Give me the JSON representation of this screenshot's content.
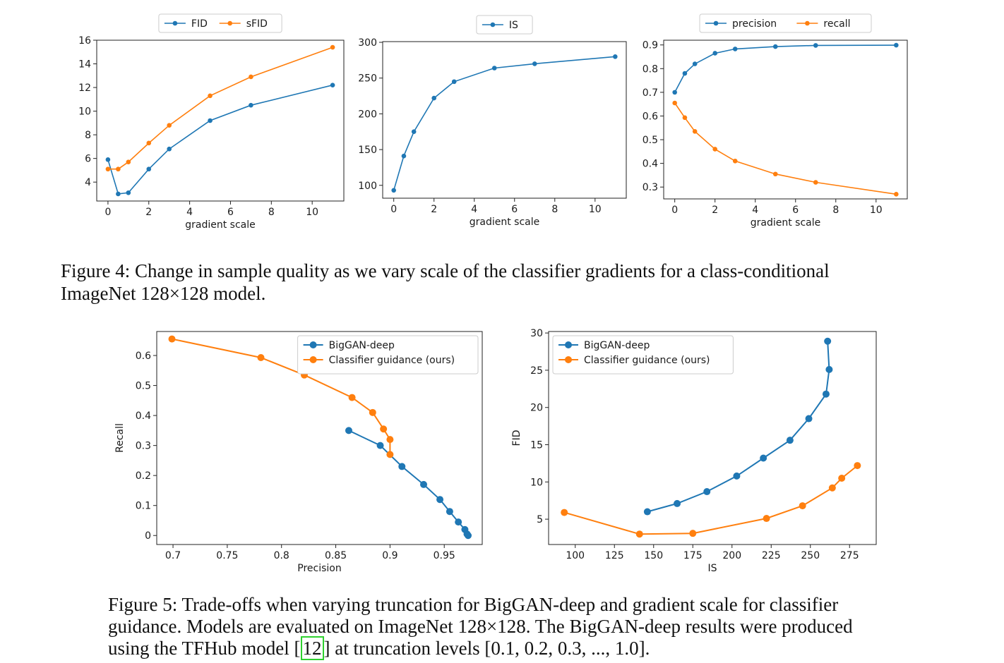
{
  "chart_data": [
    {
      "id": "fig4a",
      "type": "line",
      "xlabel": "gradient scale",
      "ylabel": "",
      "xlim": [
        -0.55,
        11.55
      ],
      "ylim": [
        2.4,
        16.0
      ],
      "xticks": [
        0,
        2,
        4,
        6,
        8,
        10
      ],
      "yticks": [
        4,
        6,
        8,
        10,
        12,
        14,
        16
      ],
      "legend": "top-center",
      "series": [
        {
          "name": "FID",
          "color": "#1f77b4",
          "x": [
            0,
            0.5,
            1,
            2,
            3,
            5,
            7,
            11
          ],
          "y": [
            5.9,
            3.0,
            3.1,
            5.1,
            6.8,
            9.2,
            10.5,
            12.2
          ]
        },
        {
          "name": "sFID",
          "color": "#ff7f0e",
          "x": [
            0,
            0.5,
            1,
            2,
            3,
            5,
            7,
            11
          ],
          "y": [
            5.1,
            5.1,
            5.7,
            7.3,
            8.8,
            11.3,
            12.9,
            15.4
          ]
        }
      ]
    },
    {
      "id": "fig4b",
      "type": "line",
      "xlabel": "gradient scale",
      "ylabel": "",
      "xlim": [
        -0.55,
        11.55
      ],
      "ylim": [
        82,
        301
      ],
      "xticks": [
        0,
        2,
        4,
        6,
        8,
        10
      ],
      "yticks": [
        100,
        150,
        200,
        250,
        300
      ],
      "legend": "top-center",
      "series": [
        {
          "name": "IS",
          "color": "#1f77b4",
          "x": [
            0,
            0.5,
            1,
            2,
            3,
            5,
            7,
            11
          ],
          "y": [
            93,
            141,
            175,
            222,
            245,
            264,
            270,
            280
          ]
        }
      ]
    },
    {
      "id": "fig4c",
      "type": "line",
      "xlabel": "gradient scale",
      "ylabel": "",
      "xlim": [
        -0.55,
        11.55
      ],
      "ylim": [
        0.25,
        0.92
      ],
      "xticks": [
        0,
        2,
        4,
        6,
        8,
        10
      ],
      "yticks": [
        0.3,
        0.4,
        0.5,
        0.6,
        0.7,
        0.8,
        0.9
      ],
      "legend": "top-center",
      "series": [
        {
          "name": "precision",
          "color": "#1f77b4",
          "x": [
            0,
            0.5,
            1,
            2,
            3,
            5,
            7,
            11
          ],
          "y": [
            0.7,
            0.78,
            0.82,
            0.865,
            0.883,
            0.893,
            0.898,
            0.899
          ]
        },
        {
          "name": "recall",
          "color": "#ff7f0e",
          "x": [
            0,
            0.5,
            1,
            2,
            3,
            5,
            7,
            11
          ],
          "y": [
            0.655,
            0.593,
            0.535,
            0.46,
            0.41,
            0.355,
            0.32,
            0.27
          ]
        }
      ]
    },
    {
      "id": "fig5a",
      "type": "line",
      "xlabel": "Precision",
      "ylabel": "Recall",
      "xlim": [
        0.685,
        0.985
      ],
      "ylim": [
        -0.03,
        0.68
      ],
      "xticks": [
        0.7,
        0.75,
        0.8,
        0.85,
        0.9,
        0.95
      ],
      "yticks": [
        0.0,
        0.1,
        0.2,
        0.3,
        0.4,
        0.5,
        0.6
      ],
      "legend": "top-right",
      "series": [
        {
          "name": "BigGAN-deep",
          "color": "#1f77b4",
          "x": [
            0.862,
            0.891,
            0.911,
            0.931,
            0.946,
            0.955,
            0.963,
            0.969,
            0.971,
            0.972
          ],
          "y": [
            0.35,
            0.3,
            0.23,
            0.17,
            0.12,
            0.08,
            0.045,
            0.02,
            0.005,
            0.0
          ]
        },
        {
          "name": "Classifier guidance (ours)",
          "color": "#ff7f0e",
          "x": [
            0.699,
            0.781,
            0.821,
            0.865,
            0.884,
            0.894,
            0.9,
            0.9
          ],
          "y": [
            0.655,
            0.593,
            0.535,
            0.46,
            0.41,
            0.355,
            0.32,
            0.27
          ]
        }
      ]
    },
    {
      "id": "fig5b",
      "type": "line",
      "xlabel": "IS",
      "ylabel": "FID",
      "xlim": [
        83,
        292
      ],
      "ylim": [
        1.6,
        30.2
      ],
      "xticks": [
        100,
        125,
        150,
        175,
        200,
        225,
        250,
        275
      ],
      "yticks": [
        5,
        10,
        15,
        20,
        25,
        30
      ],
      "legend": "top-left",
      "series": [
        {
          "name": "BigGAN-deep",
          "color": "#1f77b4",
          "x": [
            146,
            165,
            184,
            203,
            220,
            237,
            249,
            260,
            262,
            261
          ],
          "y": [
            6.0,
            7.1,
            8.7,
            10.8,
            13.2,
            15.6,
            18.5,
            21.8,
            25.1,
            28.9
          ]
        },
        {
          "name": "Classifier guidance (ours)",
          "color": "#ff7f0e",
          "x": [
            93,
            141,
            175,
            222,
            245,
            264,
            270,
            280
          ],
          "y": [
            5.9,
            3.0,
            3.1,
            5.1,
            6.8,
            9.2,
            10.5,
            12.2
          ]
        }
      ]
    }
  ],
  "captions": {
    "fig4_line1": "Figure 4: Change in sample quality as we vary scale of the classifier gradients for a class-conditional",
    "fig4_line2": "ImageNet 128×128 model.",
    "fig5_line1": "Figure 5:  Trade-offs when varying truncation for BigGAN-deep and gradient scale for classifier",
    "fig5_line2": "guidance. Models are evaluated on ImageNet 128×128. The BigGAN-deep results were produced",
    "fig5_line3_pre": "using the TFHub model [",
    "fig5_line3_cite": "12",
    "fig5_line3_post": "] at truncation levels [0.1, 0.2, 0.3, ..., 1.0]."
  }
}
